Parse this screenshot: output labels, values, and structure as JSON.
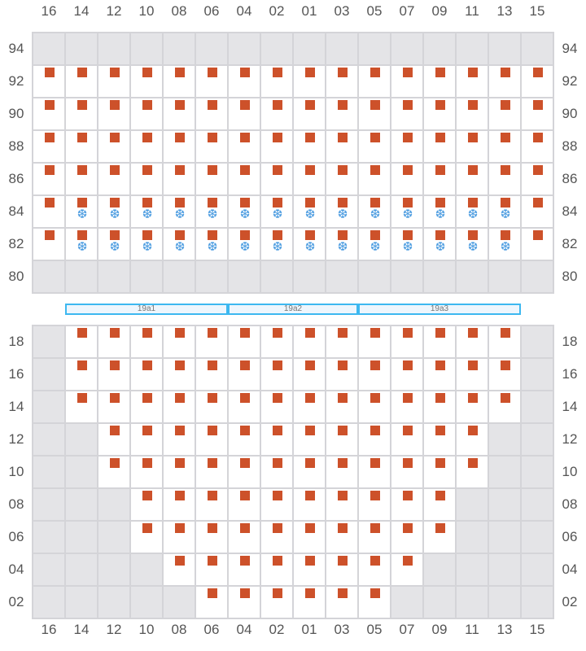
{
  "columns": [
    "16",
    "14",
    "12",
    "10",
    "08",
    "06",
    "04",
    "02",
    "01",
    "03",
    "05",
    "07",
    "09",
    "11",
    "13",
    "15"
  ],
  "colors": {
    "seat": "#cd512a",
    "chilled": "#4a9be0",
    "unavailable": "#e4e4e7",
    "zone_border": "#3db8f0"
  },
  "icons": {
    "seat": "square-marker",
    "chilled": "snowflake-icon"
  },
  "top_section": {
    "rows": [
      {
        "label": "94",
        "available": [],
        "seats": [],
        "chilled": []
      },
      {
        "label": "92",
        "available": "all",
        "seats": "all",
        "chilled": []
      },
      {
        "label": "90",
        "available": "all",
        "seats": "all",
        "chilled": []
      },
      {
        "label": "88",
        "available": "all",
        "seats": "all",
        "chilled": []
      },
      {
        "label": "86",
        "available": "all",
        "seats": "all",
        "chilled": []
      },
      {
        "label": "84",
        "available": "all",
        "seats": "all",
        "chilled": [
          "14",
          "12",
          "10",
          "08",
          "06",
          "04",
          "02",
          "01",
          "03",
          "05",
          "07",
          "09",
          "11",
          "13"
        ]
      },
      {
        "label": "82",
        "available": "all",
        "seats": "all",
        "chilled": [
          "14",
          "12",
          "10",
          "08",
          "06",
          "04",
          "02",
          "01",
          "03",
          "05",
          "07",
          "09",
          "11",
          "13"
        ]
      },
      {
        "label": "80",
        "available": [],
        "seats": [],
        "chilled": []
      }
    ]
  },
  "zones": [
    {
      "label": "19a1",
      "from": "14",
      "to": "06"
    },
    {
      "label": "19a2",
      "from": "04",
      "to": "03"
    },
    {
      "label": "19a3",
      "from": "05",
      "to": "13"
    }
  ],
  "bottom_section": {
    "rows": [
      {
        "label": "18",
        "range": [
          "14",
          "13"
        ]
      },
      {
        "label": "16",
        "range": [
          "14",
          "13"
        ]
      },
      {
        "label": "14",
        "range": [
          "14",
          "13"
        ]
      },
      {
        "label": "12",
        "range": [
          "12",
          "11"
        ]
      },
      {
        "label": "10",
        "range": [
          "12",
          "11"
        ]
      },
      {
        "label": "08",
        "range": [
          "10",
          "09"
        ]
      },
      {
        "label": "06",
        "range": [
          "10",
          "09"
        ]
      },
      {
        "label": "04",
        "range": [
          "08",
          "07"
        ]
      },
      {
        "label": "02",
        "range": [
          "06",
          "05"
        ]
      }
    ]
  }
}
